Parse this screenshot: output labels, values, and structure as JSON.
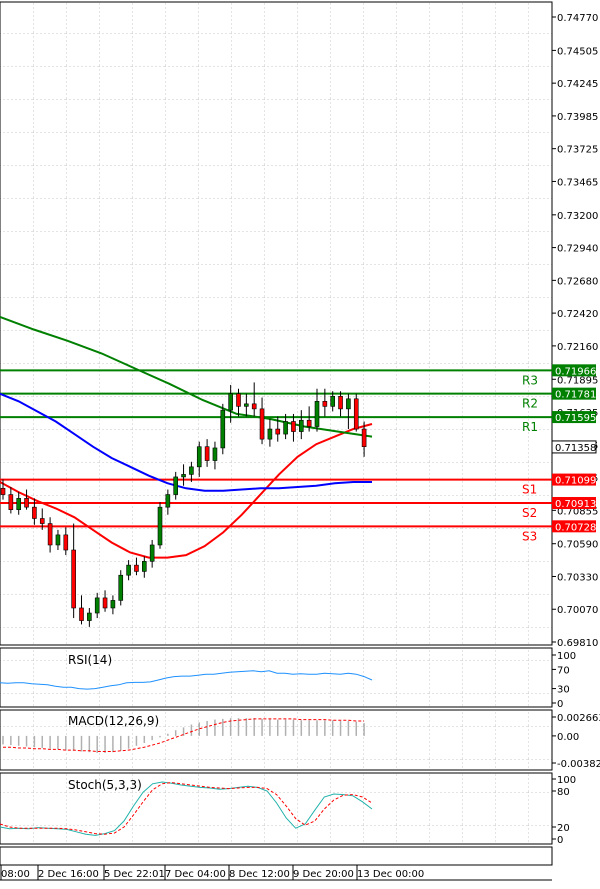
{
  "chart_data": [
    {
      "type": "candlestick",
      "panel": "price",
      "y_axis_ticks": [
        "0.74770",
        "0.74505",
        "0.74245",
        "0.73985",
        "0.73725",
        "0.73465",
        "0.73200",
        "0.72940",
        "0.72680",
        "0.72420",
        "0.72160",
        "0.71895",
        "0.71635",
        "0.71375",
        "0.71115",
        "0.70855",
        "0.70590",
        "0.70330",
        "0.70070",
        "0.69810"
      ],
      "ylim": [
        0.6981,
        0.7477
      ],
      "x_tick_labels": [
        "08:00",
        "2 Dec 16:00",
        "5 Dec 22:01",
        "7 Dec 04:00",
        "8 Dec 12:00",
        "9 Dec 20:00",
        "13 Dec 00:00"
      ],
      "current_price": "0.71358",
      "levels": [
        {
          "name": "R3",
          "value": "0.71966",
          "color": "#008000"
        },
        {
          "name": "R2",
          "value": "0.71781",
          "color": "#008000"
        },
        {
          "name": "R1",
          "value": "0.71595",
          "color": "#008000"
        },
        {
          "name": "S1",
          "value": "0.71099",
          "color": "#ff0000"
        },
        {
          "name": "S2",
          "value": "0.70913",
          "color": "#ff0000"
        },
        {
          "name": "S3",
          "value": "0.70728",
          "color": "#ff0000"
        }
      ],
      "candles": [
        [
          0.7103,
          0.711,
          0.7094,
          0.7098
        ],
        [
          0.7098,
          0.7104,
          0.7083,
          0.7086
        ],
        [
          0.7086,
          0.71,
          0.7082,
          0.7095
        ],
        [
          0.7095,
          0.7102,
          0.7086,
          0.7088
        ],
        [
          0.7088,
          0.7095,
          0.7074,
          0.7079
        ],
        [
          0.7079,
          0.7087,
          0.707,
          0.7075
        ],
        [
          0.7075,
          0.708,
          0.7052,
          0.7058
        ],
        [
          0.7058,
          0.707,
          0.7054,
          0.7066
        ],
        [
          0.7066,
          0.7072,
          0.705,
          0.7054
        ],
        [
          0.7054,
          0.7075,
          0.7,
          0.7008
        ],
        [
          0.7008,
          0.7018,
          0.6995,
          0.6998
        ],
        [
          0.6998,
          0.7008,
          0.6993,
          0.7004
        ],
        [
          0.7004,
          0.702,
          0.7,
          0.7016
        ],
        [
          0.7016,
          0.7022,
          0.7005,
          0.7008
        ],
        [
          0.7008,
          0.7018,
          0.7003,
          0.7014
        ],
        [
          0.7014,
          0.7038,
          0.701,
          0.7034
        ],
        [
          0.7034,
          0.7046,
          0.703,
          0.7042
        ],
        [
          0.7042,
          0.7048,
          0.7034,
          0.7037
        ],
        [
          0.7037,
          0.7049,
          0.7032,
          0.7045
        ],
        [
          0.7045,
          0.7062,
          0.704,
          0.7058
        ],
        [
          0.7058,
          0.7092,
          0.7055,
          0.7088
        ],
        [
          0.7088,
          0.7102,
          0.7082,
          0.7098
        ],
        [
          0.7098,
          0.7116,
          0.7094,
          0.7112
        ],
        [
          0.7112,
          0.7122,
          0.7105,
          0.7114
        ],
        [
          0.7114,
          0.7124,
          0.7108,
          0.712
        ],
        [
          0.712,
          0.714,
          0.7112,
          0.7136
        ],
        [
          0.7136,
          0.7142,
          0.712,
          0.7125
        ],
        [
          0.7125,
          0.714,
          0.7118,
          0.7135
        ],
        [
          0.7135,
          0.717,
          0.713,
          0.7165
        ],
        [
          0.7165,
          0.7185,
          0.7155,
          0.7178
        ],
        [
          0.7178,
          0.7182,
          0.716,
          0.7168
        ],
        [
          0.7168,
          0.7178,
          0.716,
          0.717
        ],
        [
          0.717,
          0.7187,
          0.716,
          0.7166
        ],
        [
          0.7166,
          0.7175,
          0.7138,
          0.7142
        ],
        [
          0.7142,
          0.7158,
          0.7136,
          0.715
        ],
        [
          0.715,
          0.716,
          0.714,
          0.7146
        ],
        [
          0.7146,
          0.7162,
          0.7142,
          0.7156
        ],
        [
          0.7156,
          0.7162,
          0.714,
          0.7148
        ],
        [
          0.7148,
          0.7165,
          0.7142,
          0.7157
        ],
        [
          0.7157,
          0.7168,
          0.7148,
          0.7152
        ],
        [
          0.7152,
          0.7182,
          0.7148,
          0.7172
        ],
        [
          0.7172,
          0.7182,
          0.716,
          0.7168
        ],
        [
          0.7168,
          0.718,
          0.7164,
          0.7176
        ],
        [
          0.7176,
          0.718,
          0.716,
          0.7166
        ],
        [
          0.7166,
          0.7178,
          0.715,
          0.7174
        ],
        [
          0.7174,
          0.7178,
          0.7148,
          0.715
        ],
        [
          0.715,
          0.7156,
          0.7128,
          0.7136
        ]
      ],
      "series": [
        {
          "color": "#ff0000",
          "values": [
            0.7108,
            0.71,
            0.7093,
            0.7087,
            0.708,
            0.707,
            0.706,
            0.7052,
            0.7048,
            0.7048,
            0.705,
            0.7057,
            0.7068,
            0.7082,
            0.7098,
            0.7114,
            0.7128,
            0.7138,
            0.7144,
            0.715,
            0.7154
          ]
        },
        {
          "color": "#0000ff",
          "values": [
            0.7178,
            0.7172,
            0.7164,
            0.7156,
            0.7146,
            0.7136,
            0.7127,
            0.712,
            0.7113,
            0.7107,
            0.7103,
            0.7101,
            0.7101,
            0.7102,
            0.7103,
            0.7103,
            0.7104,
            0.7105,
            0.7107,
            0.7108,
            0.7108
          ]
        },
        {
          "color": "#008000",
          "values": [
            0.7239,
            0.7229,
            0.722,
            0.721,
            0.7198,
            0.7186,
            0.7173,
            0.7162,
            0.7158,
            0.7152,
            0.7148,
            0.7144
          ]
        }
      ]
    },
    {
      "type": "line",
      "panel": "rsi",
      "title": "RSI(14)",
      "y_axis_ticks": [
        "100",
        "70",
        "30",
        "0"
      ],
      "ylim": [
        0,
        100
      ],
      "series": [
        {
          "color": "#1e90ff",
          "values": [
            42,
            41,
            42,
            42,
            40,
            39,
            38,
            35,
            33,
            33,
            30,
            29,
            30,
            33,
            36,
            38,
            42,
            43,
            43,
            44,
            48,
            52,
            55,
            56,
            56,
            58,
            60,
            60,
            62,
            64,
            65,
            66,
            67,
            65,
            67,
            62,
            62,
            60,
            61,
            60,
            60,
            62,
            61,
            60,
            62,
            60,
            55,
            48
          ]
        }
      ]
    },
    {
      "type": "bar",
      "panel": "macd",
      "title": "MACD(12,26,9)",
      "y_axis_ticks": [
        "0.002663",
        "0.00",
        "-0.003821"
      ],
      "ylim": [
        -0.003821,
        0.002663
      ],
      "histogram": [
        -0.0012,
        -0.0013,
        -0.0014,
        -0.0015,
        -0.0016,
        -0.0017,
        -0.0018,
        -0.0019,
        -0.002,
        -0.0021,
        -0.0022,
        -0.0023,
        -0.0024,
        -0.0024,
        -0.0023,
        -0.0021,
        -0.0018,
        -0.0014,
        -0.001,
        -0.0006,
        -0.0002,
        0.0003,
        0.0008,
        0.0012,
        0.0016,
        0.0019,
        0.0021,
        0.0023,
        0.0024,
        0.0025,
        0.0025,
        0.0025,
        0.0025,
        0.0024,
        0.0024,
        0.0023,
        0.0023,
        0.0023,
        0.0022,
        0.0022,
        0.0022,
        0.0022,
        0.0022,
        0.0021,
        0.0021,
        0.002,
        0.0018
      ],
      "signal": [
        -0.0016,
        -0.0016,
        -0.0017,
        -0.0017,
        -0.0018,
        -0.0018,
        -0.0019,
        -0.0019,
        -0.002,
        -0.002,
        -0.0021,
        -0.0021,
        -0.0022,
        -0.0022,
        -0.0022,
        -0.0021,
        -0.002,
        -0.0018,
        -0.0016,
        -0.0013,
        -0.001,
        -0.0006,
        -0.0002,
        0.0002,
        0.0006,
        0.001,
        0.0013,
        0.0016,
        0.0019,
        0.0021,
        0.0022,
        0.0023,
        0.0024,
        0.0024,
        0.0024,
        0.0024,
        0.0024,
        0.0024,
        0.0023,
        0.0023,
        0.0023,
        0.0023,
        0.0022,
        0.0022,
        0.0022,
        0.0021,
        0.0021
      ]
    },
    {
      "type": "line",
      "panel": "stoch",
      "title": "Stoch(5,3,3)",
      "y_axis_ticks": [
        "100",
        "80",
        "20",
        "0"
      ],
      "ylim": [
        0,
        100
      ],
      "series": [
        {
          "color": "#20b2aa",
          "values": [
            20,
            17,
            18,
            17,
            19,
            18,
            17,
            16,
            12,
            8,
            6,
            9,
            14,
            30,
            55,
            78,
            92,
            95,
            93,
            90,
            88,
            86,
            85,
            83,
            84,
            86,
            88,
            86,
            80,
            60,
            35,
            18,
            25,
            48,
            70,
            75,
            74,
            72,
            62,
            50
          ]
        },
        {
          "color": "#ff0000",
          "dashed": true,
          "values": [
            25,
            20,
            18,
            18,
            18,
            18,
            18,
            17,
            15,
            12,
            9,
            8,
            10,
            20,
            40,
            62,
            82,
            92,
            94,
            92,
            90,
            88,
            86,
            85,
            84,
            85,
            86,
            86,
            84,
            74,
            55,
            34,
            23,
            30,
            50,
            65,
            73,
            74,
            70,
            60
          ]
        }
      ]
    }
  ]
}
